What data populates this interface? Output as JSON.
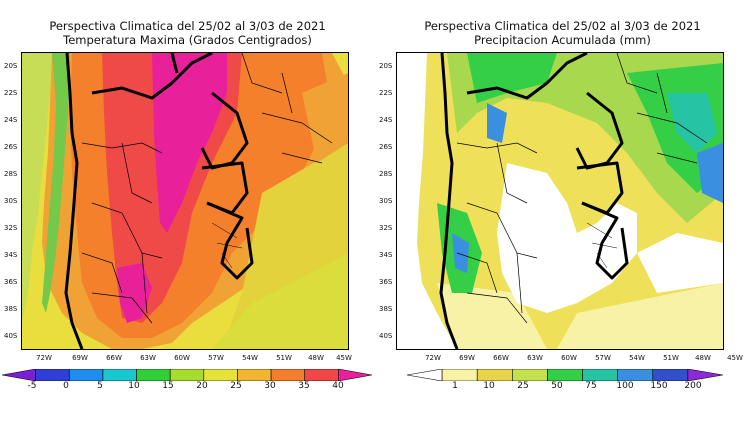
{
  "left_panel": {
    "title_line1": "Perspectiva Climatica del 25/02 al 3/03 de 2021",
    "title_line2": "Temperatura Maxima (Grados Centigrados)",
    "lat_labels": [
      "20S",
      "22S",
      "24S",
      "26S",
      "28S",
      "30S",
      "32S",
      "34S",
      "36S",
      "38S",
      "40S"
    ],
    "lon_labels": [
      "72W",
      "69W",
      "66W",
      "63W",
      "60W",
      "57W",
      "54W",
      "51W",
      "48W",
      "45W"
    ],
    "colorbar_labels": [
      "-5",
      "0",
      "5",
      "10",
      "15",
      "20",
      "25",
      "30",
      "35",
      "40"
    ],
    "colorbar_colors": [
      "#7a1fd6",
      "#2f3fd8",
      "#1e8cf0",
      "#18c7cf",
      "#30cf3a",
      "#a6dc2b",
      "#e5e23a",
      "#f2b530",
      "#f57e2c",
      "#f04848",
      "#e8209a"
    ]
  },
  "right_panel": {
    "title_line1": "Perspectiva Climatica del 25/02 al 3/03 de 2021",
    "title_line2": "Precipitacion Acumulada (mm)",
    "lat_labels": [
      "20S",
      "22S",
      "24S",
      "26S",
      "28S",
      "30S",
      "32S",
      "34S",
      "36S",
      "38S",
      "40S"
    ],
    "lon_labels": [
      "72W",
      "69W",
      "66W",
      "63W",
      "60W",
      "57W",
      "54W",
      "51W",
      "48W",
      "45W"
    ],
    "colorbar_labels": [
      "1",
      "10",
      "25",
      "50",
      "75",
      "100",
      "150",
      "200"
    ],
    "colorbar_colors": [
      "#ffffff",
      "#f7f2a6",
      "#e8d44a",
      "#c3e14e",
      "#34cf46",
      "#26c4a4",
      "#3a8fe0",
      "#3350cc",
      "#8a2ad8"
    ]
  }
}
